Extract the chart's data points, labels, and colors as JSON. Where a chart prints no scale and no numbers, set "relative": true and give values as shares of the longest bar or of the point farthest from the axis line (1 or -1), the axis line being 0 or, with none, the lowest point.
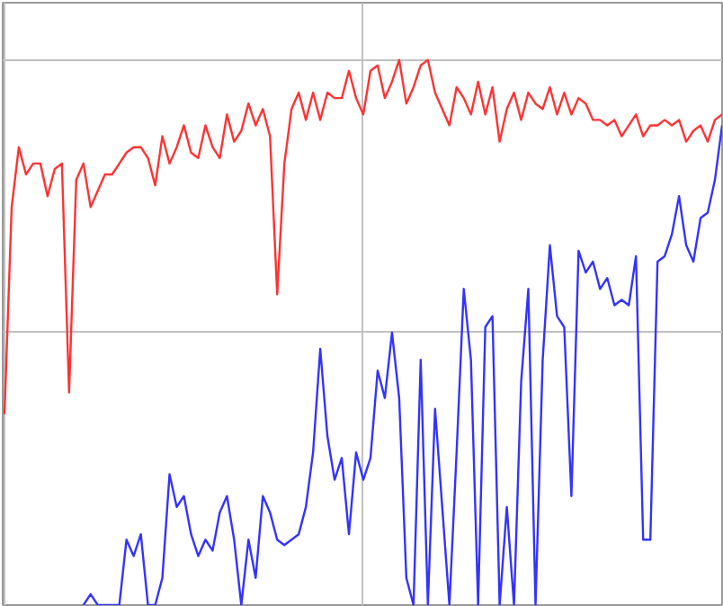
{
  "chart_data": {
    "type": "line",
    "relative": true,
    "grid": true,
    "categories": [
      null,
      null,
      null,
      null,
      null,
      null,
      null,
      null,
      null,
      null,
      null,
      null,
      null,
      null,
      null,
      null,
      null,
      null,
      null,
      null,
      null,
      null,
      null,
      null,
      null,
      null,
      null,
      null,
      null,
      null,
      null,
      null,
      null,
      null,
      null,
      null,
      null,
      null,
      null,
      null,
      null,
      null,
      null,
      null,
      null,
      null,
      null,
      null,
      null,
      null,
      null,
      null,
      null,
      null,
      null,
      null,
      null,
      null,
      null,
      null,
      null,
      null,
      null,
      null,
      null,
      null,
      null,
      null,
      null,
      null,
      null,
      null,
      null,
      null,
      null,
      null,
      null,
      null,
      null,
      null,
      null,
      null,
      null,
      null,
      null,
      null,
      null,
      null,
      null,
      null,
      null,
      null,
      null,
      null,
      null,
      null,
      null,
      null,
      null,
      null,
      null
    ],
    "series": [
      {
        "color": "#ff3333",
        "values": [
          0.35,
          0.73,
          0.84,
          0.79,
          0.81,
          0.81,
          0.75,
          0.8,
          0.81,
          0.39,
          0.78,
          0.81,
          0.73,
          0.76,
          0.79,
          0.79,
          0.81,
          0.83,
          0.84,
          0.84,
          0.82,
          0.77,
          0.86,
          0.81,
          0.84,
          0.88,
          0.83,
          0.82,
          0.88,
          0.84,
          0.82,
          0.9,
          0.85,
          0.87,
          0.92,
          0.88,
          0.91,
          0.86,
          0.57,
          0.81,
          0.91,
          0.94,
          0.89,
          0.94,
          0.89,
          0.94,
          0.93,
          0.93,
          0.98,
          0.93,
          0.9,
          0.98,
          0.99,
          0.93,
          0.96,
          1.0,
          0.92,
          0.95,
          0.99,
          1.0,
          0.94,
          0.91,
          0.88,
          0.95,
          0.93,
          0.9,
          0.96,
          0.9,
          0.95,
          0.85,
          0.91,
          0.94,
          0.89,
          0.94,
          0.92,
          0.91,
          0.95,
          0.9,
          0.94,
          0.9,
          0.93,
          0.92,
          0.89,
          0.89,
          0.88,
          0.89,
          0.86,
          0.88,
          0.9,
          0.86,
          0.88,
          0.88,
          0.89,
          0.88,
          0.89,
          0.85,
          0.87,
          0.88,
          0.85,
          0.89,
          0.9
        ]
      },
      {
        "color": "#3333ff",
        "values": [
          null,
          null,
          null,
          null,
          null,
          null,
          null,
          null,
          null,
          null,
          null,
          0,
          0.02,
          0,
          0,
          0,
          0,
          0.12,
          0.09,
          0.13,
          0,
          0,
          0.05,
          0.24,
          0.18,
          0.2,
          0.13,
          0.09,
          0.12,
          0.1,
          0.17,
          0.2,
          0.12,
          0,
          0.12,
          0.05,
          0.2,
          0.17,
          0.12,
          0.11,
          0.12,
          0.13,
          0.18,
          0.28,
          0.47,
          0.31,
          0.23,
          0.27,
          0.13,
          0.28,
          0.23,
          0.27,
          0.43,
          0.38,
          0.5,
          0.38,
          0.05,
          0,
          0.45,
          0,
          0.36,
          0.18,
          0,
          0.28,
          0.58,
          0.45,
          0,
          0.51,
          0.53,
          0,
          0.18,
          0,
          0.41,
          0.58,
          0,
          0.45,
          0.66,
          0.53,
          0.51,
          0.2,
          0.65,
          0.61,
          0.63,
          0.58,
          0.6,
          0.55,
          0.56,
          0.55,
          0.64,
          0.12,
          0.12,
          0.63,
          0.64,
          0.68,
          0.75,
          0.66,
          0.63,
          0.71,
          0.72,
          0.78,
          0.88
        ]
      }
    ]
  }
}
